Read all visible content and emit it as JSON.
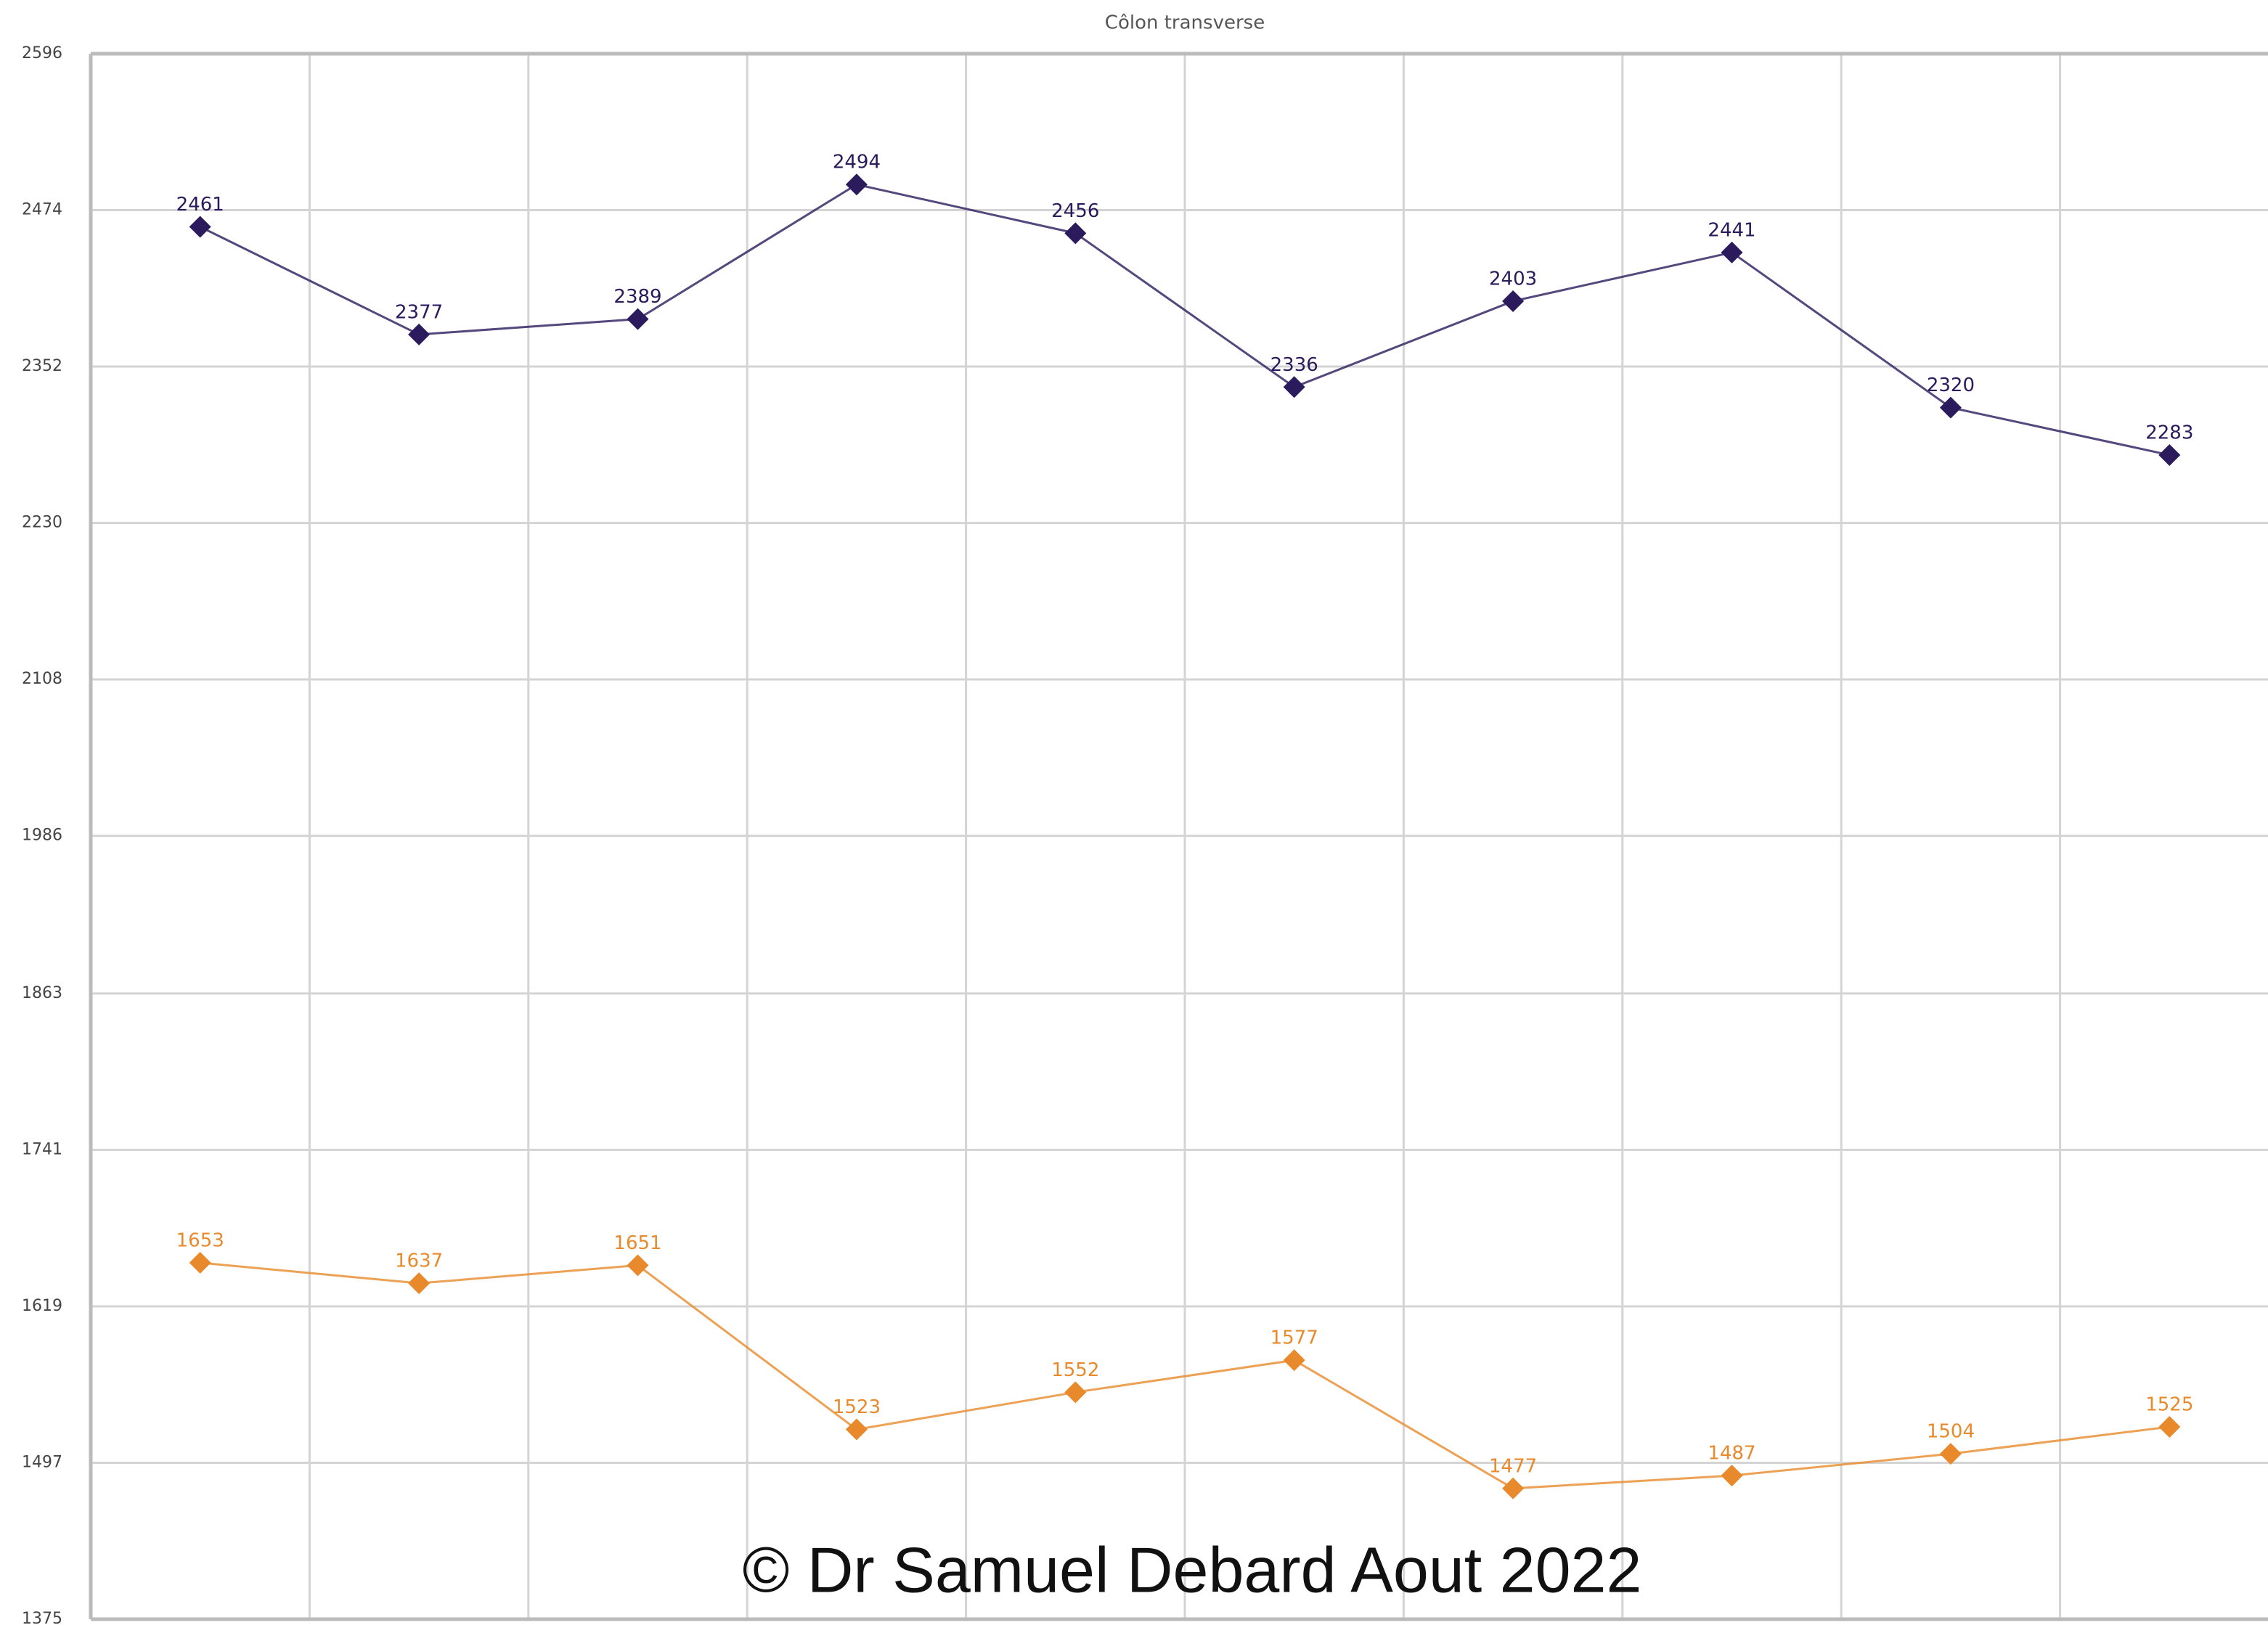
{
  "chart_data": {
    "type": "line",
    "title": "Côlon transverse",
    "categories": [
      null,
      null,
      null,
      null,
      null,
      null,
      null,
      null,
      null,
      null
    ],
    "series": [
      {
        "color": "#2b1a5c",
        "values": [
          2461,
          2377,
          2389,
          2494,
          2456,
          2336,
          2403,
          2441,
          2320,
          2283
        ]
      },
      {
        "color": "#e8892b",
        "values": [
          1653,
          1637,
          1651,
          1523,
          1552,
          1577,
          1477,
          1487,
          1504,
          1525
        ]
      }
    ],
    "ylim": [
      1375,
      2596
    ],
    "yticks": [
      1375,
      1497,
      1619,
      1741,
      1863,
      1986,
      2108,
      2230,
      2352,
      2474,
      2596
    ],
    "grid": true,
    "annotation": "© Dr Samuel Debard Aout 2022"
  }
}
